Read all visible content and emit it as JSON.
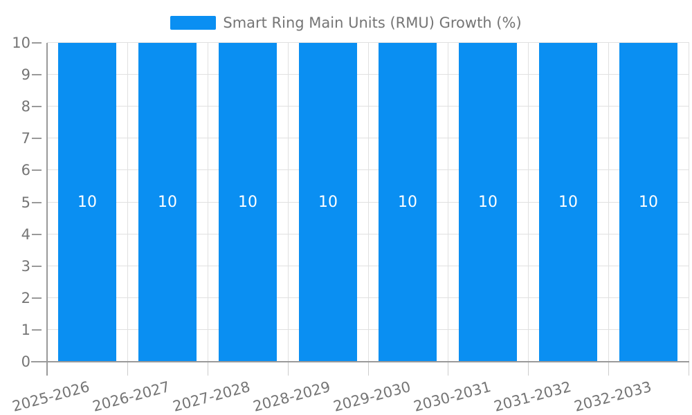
{
  "chart_data": {
    "type": "bar",
    "categories": [
      "2025-2026",
      "2026-2027",
      "2027-2028",
      "2028-2029",
      "2029-2030",
      "2030-2031",
      "2031-2032",
      "2032-2033"
    ],
    "series": [
      {
        "name": "Smart Ring Main Units (RMU) Growth (%)",
        "values": [
          10,
          10,
          10,
          10,
          10,
          10,
          10,
          10
        ]
      }
    ],
    "bar_value_labels": [
      "10",
      "10",
      "10",
      "10",
      "10",
      "10",
      "10",
      "10"
    ],
    "y_ticks": [
      "0",
      "1",
      "2",
      "3",
      "4",
      "5",
      "6",
      "7",
      "8",
      "9",
      "10"
    ],
    "ylim": [
      0,
      10
    ],
    "grid": true,
    "legend_position": "top-center",
    "xlabel": "",
    "ylabel": "",
    "colors": {
      "bar": "#0a8ff2",
      "axis_text": "#757575",
      "grid_line": "#e0e0e0",
      "axis_line": "#999999",
      "minor_tick": "#cccccc",
      "bar_label": "#ffffff",
      "background": "#ffffff"
    }
  }
}
